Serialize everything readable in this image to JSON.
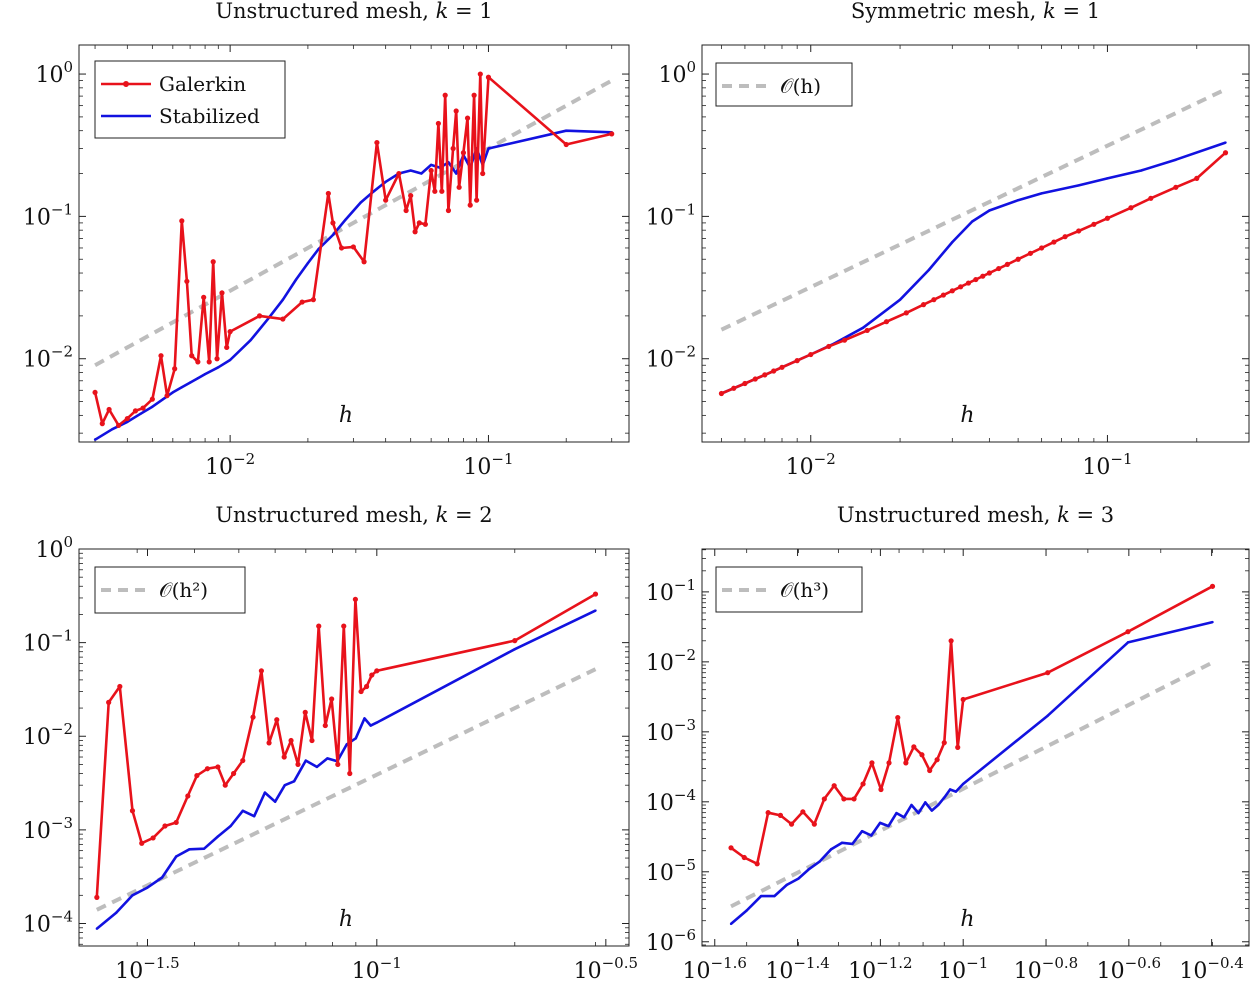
{
  "colors": {
    "galerkin": "#e8121b",
    "stabilized": "#1212e0",
    "reference": "#bdbdbd"
  },
  "chart_data": [
    {
      "type": "line",
      "title": "Unstructured mesh, k = 1",
      "title_parts": {
        "text": "Unstructured mesh, ",
        "var": "k",
        "rest": " = 1"
      },
      "xlabel": "h",
      "xscale": "log",
      "yscale": "log",
      "xlim": [
        0.0026,
        0.35
      ],
      "ylim": [
        0.0026,
        1.6
      ],
      "xticks": [
        {
          "base": "10",
          "exp": "−2",
          "value": 0.01
        },
        {
          "base": "10",
          "exp": "−1",
          "value": 0.1
        }
      ],
      "yticks": [
        {
          "base": "10",
          "exp": "−2",
          "value": 0.01
        },
        {
          "base": "10",
          "exp": "−1",
          "value": 0.1
        },
        {
          "base": "10",
          "exp": "0",
          "value": 1
        }
      ],
      "legend": {
        "placement": "top-left",
        "entries": [
          "Galerkin",
          "Stabilized"
        ]
      },
      "series": [
        {
          "name": "Galerkin",
          "color": "galerkin",
          "markers": true,
          "x": [
            0.003,
            0.0032,
            0.0034,
            0.0037,
            0.004,
            0.0043,
            0.0046,
            0.005,
            0.0054,
            0.0057,
            0.0061,
            0.0065,
            0.0068,
            0.0071,
            0.0075,
            0.0079,
            0.0083,
            0.0086,
            0.0089,
            0.0093,
            0.0097,
            0.01,
            0.013,
            0.016,
            0.019,
            0.021,
            0.024,
            0.025,
            0.027,
            0.03,
            0.033,
            0.037,
            0.04,
            0.045,
            0.048,
            0.05,
            0.052,
            0.054,
            0.057,
            0.06,
            0.062,
            0.064,
            0.066,
            0.068,
            0.07,
            0.073,
            0.075,
            0.077,
            0.08,
            0.083,
            0.085,
            0.088,
            0.09,
            0.093,
            0.095,
            0.1,
            0.2,
            0.3
          ],
          "y": [
            0.0058,
            0.0035,
            0.0044,
            0.0034,
            0.0038,
            0.0043,
            0.0045,
            0.0052,
            0.0105,
            0.0055,
            0.0085,
            0.093,
            0.035,
            0.0105,
            0.0095,
            0.027,
            0.0095,
            0.048,
            0.01,
            0.029,
            0.012,
            0.0155,
            0.02,
            0.019,
            0.025,
            0.026,
            0.145,
            0.09,
            0.06,
            0.061,
            0.048,
            0.33,
            0.13,
            0.2,
            0.11,
            0.14,
            0.078,
            0.09,
            0.088,
            0.21,
            0.15,
            0.45,
            0.15,
            0.71,
            0.11,
            0.3,
            0.55,
            0.16,
            0.28,
            0.49,
            0.12,
            0.71,
            0.13,
            1.0,
            0.2,
            0.95,
            0.32,
            0.38
          ]
        },
        {
          "name": "Stabilized",
          "color": "stabilized",
          "markers": false,
          "x": [
            0.003,
            0.0035,
            0.004,
            0.0045,
            0.005,
            0.0055,
            0.006,
            0.0065,
            0.007,
            0.0075,
            0.008,
            0.009,
            0.01,
            0.012,
            0.014,
            0.016,
            0.018,
            0.02,
            0.022,
            0.025,
            0.028,
            0.032,
            0.036,
            0.04,
            0.045,
            0.05,
            0.055,
            0.06,
            0.065,
            0.07,
            0.075,
            0.08,
            0.085,
            0.09,
            0.095,
            0.1,
            0.2,
            0.3
          ],
          "y": [
            0.0027,
            0.0032,
            0.0036,
            0.0041,
            0.0046,
            0.0052,
            0.0058,
            0.0063,
            0.0068,
            0.0073,
            0.0078,
            0.0087,
            0.0098,
            0.0135,
            0.019,
            0.026,
            0.036,
            0.047,
            0.059,
            0.074,
            0.095,
            0.125,
            0.15,
            0.175,
            0.2,
            0.21,
            0.2,
            0.23,
            0.22,
            0.24,
            0.2,
            0.27,
            0.22,
            0.3,
            0.23,
            0.3,
            0.4,
            0.39
          ]
        },
        {
          "name": "",
          "color": "reference",
          "dashed": true,
          "x": [
            0.003,
            0.3
          ],
          "y": [
            0.009,
            0.9
          ]
        }
      ]
    },
    {
      "type": "line",
      "title": "Symmetric mesh, k = 1",
      "title_parts": {
        "text": "Symmetric mesh, ",
        "var": "k",
        "rest": " = 1"
      },
      "xlabel": "h",
      "xscale": "log",
      "yscale": "log",
      "xlim": [
        0.0043,
        0.3
      ],
      "ylim": [
        0.0026,
        1.6
      ],
      "xticks": [
        {
          "base": "10",
          "exp": "−2",
          "value": 0.01
        },
        {
          "base": "10",
          "exp": "−1",
          "value": 0.1
        }
      ],
      "yticks": [
        {
          "base": "10",
          "exp": "−2",
          "value": 0.01
        },
        {
          "base": "10",
          "exp": "−1",
          "value": 0.1
        },
        {
          "base": "10",
          "exp": "0",
          "value": 1
        }
      ],
      "legend": {
        "placement": "top-left",
        "entries": [
          "𝒪(h)"
        ]
      },
      "series": [
        {
          "name": "Galerkin",
          "color": "galerkin",
          "markers": true,
          "x": [
            0.005,
            0.0055,
            0.006,
            0.0065,
            0.007,
            0.0075,
            0.008,
            0.009,
            0.01,
            0.0115,
            0.013,
            0.0155,
            0.018,
            0.021,
            0.024,
            0.026,
            0.028,
            0.03,
            0.032,
            0.034,
            0.036,
            0.038,
            0.04,
            0.043,
            0.046,
            0.05,
            0.055,
            0.06,
            0.066,
            0.072,
            0.08,
            0.09,
            0.1,
            0.12,
            0.14,
            0.17,
            0.2,
            0.25
          ],
          "y": [
            0.0057,
            0.0062,
            0.0067,
            0.0072,
            0.0077,
            0.0082,
            0.0087,
            0.0097,
            0.0107,
            0.0122,
            0.0135,
            0.0158,
            0.0182,
            0.021,
            0.024,
            0.026,
            0.028,
            0.03,
            0.032,
            0.034,
            0.036,
            0.038,
            0.04,
            0.043,
            0.046,
            0.05,
            0.055,
            0.06,
            0.066,
            0.072,
            0.079,
            0.088,
            0.097,
            0.115,
            0.134,
            0.16,
            0.185,
            0.28
          ]
        },
        {
          "name": "Stabilized",
          "color": "stabilized",
          "markers": false,
          "x": [
            0.005,
            0.006,
            0.007,
            0.008,
            0.01,
            0.012,
            0.015,
            0.02,
            0.025,
            0.03,
            0.035,
            0.04,
            0.05,
            0.06,
            0.08,
            0.1,
            0.13,
            0.17,
            0.25
          ],
          "y": [
            0.0057,
            0.0067,
            0.0077,
            0.0087,
            0.0107,
            0.0128,
            0.0165,
            0.026,
            0.042,
            0.066,
            0.092,
            0.11,
            0.13,
            0.145,
            0.165,
            0.185,
            0.21,
            0.25,
            0.33
          ]
        },
        {
          "name": "𝒪(h)",
          "color": "reference",
          "dashed": true,
          "x": [
            0.005,
            0.25
          ],
          "y": [
            0.016,
            0.78
          ]
        }
      ]
    },
    {
      "type": "line",
      "title": "Unstructured mesh, k = 2",
      "title_parts": {
        "text": "Unstructured mesh, ",
        "var": "k",
        "rest": " = 2"
      },
      "xlabel": "h",
      "xscale": "log",
      "yscale": "log",
      "xlim": [
        0.0224,
        0.355
      ],
      "ylim": [
        5.75e-05,
        1.0
      ],
      "xticks": [
        {
          "base": "10",
          "exp": "−1.5",
          "value": 0.0316
        },
        {
          "base": "10",
          "exp": "−1",
          "value": 0.1
        },
        {
          "base": "10",
          "exp": "−0.5",
          "value": 0.316
        }
      ],
      "yticks": [
        {
          "base": "10",
          "exp": "−4",
          "value": 0.0001
        },
        {
          "base": "10",
          "exp": "−3",
          "value": 0.001
        },
        {
          "base": "10",
          "exp": "−2",
          "value": 0.01
        },
        {
          "base": "10",
          "exp": "−1",
          "value": 0.1
        },
        {
          "base": "10",
          "exp": "0",
          "value": 1
        }
      ],
      "legend": {
        "placement": "top-left",
        "entries": [
          "𝒪(h²)"
        ]
      },
      "series": [
        {
          "name": "Galerkin",
          "color": "galerkin",
          "markers": true,
          "x": [
            0.0245,
            0.026,
            0.0275,
            0.0293,
            0.0307,
            0.0325,
            0.0345,
            0.0365,
            0.0387,
            0.0405,
            0.0427,
            0.045,
            0.0467,
            0.0487,
            0.051,
            0.0537,
            0.056,
            0.0582,
            0.0605,
            0.0628,
            0.065,
            0.0673,
            0.0698,
            0.0722,
            0.0747,
            0.0772,
            0.0797,
            0.0822,
            0.0847,
            0.0873,
            0.0898,
            0.0924,
            0.095,
            0.0975,
            0.1,
            0.2,
            0.3
          ],
          "y": [
            0.00019,
            0.023,
            0.034,
            0.0016,
            0.00072,
            0.00082,
            0.0011,
            0.0012,
            0.0023,
            0.0038,
            0.0045,
            0.0047,
            0.003,
            0.004,
            0.0055,
            0.016,
            0.05,
            0.0085,
            0.015,
            0.006,
            0.009,
            0.005,
            0.018,
            0.009,
            0.15,
            0.013,
            0.025,
            0.005,
            0.15,
            0.004,
            0.29,
            0.03,
            0.034,
            0.045,
            0.05,
            0.105,
            0.33
          ]
        },
        {
          "name": "Stabilized",
          "color": "stabilized",
          "markers": false,
          "x": [
            0.0245,
            0.027,
            0.0293,
            0.0315,
            0.034,
            0.0365,
            0.039,
            0.042,
            0.045,
            0.048,
            0.051,
            0.054,
            0.057,
            0.06,
            0.063,
            0.066,
            0.07,
            0.074,
            0.078,
            0.082,
            0.086,
            0.09,
            0.094,
            0.097,
            0.1,
            0.2,
            0.3
          ],
          "y": [
            8.8e-05,
            0.00013,
            0.0002,
            0.00024,
            0.00031,
            0.00052,
            0.00062,
            0.00063,
            0.00085,
            0.0011,
            0.0016,
            0.0014,
            0.0025,
            0.002,
            0.003,
            0.0033,
            0.0055,
            0.0047,
            0.0058,
            0.0054,
            0.0082,
            0.0095,
            0.0155,
            0.013,
            0.014,
            0.085,
            0.22
          ]
        },
        {
          "name": "𝒪(h²)",
          "color": "reference",
          "dashed": true,
          "x": [
            0.0245,
            0.3
          ],
          "y": [
            0.00014,
            0.052
          ]
        }
      ]
    },
    {
      "type": "line",
      "title": "Unstructured mesh, k = 3",
      "title_parts": {
        "text": "Unstructured mesh, ",
        "var": "k",
        "rest": " = 3"
      },
      "xlabel": "h",
      "xscale": "log",
      "yscale": "log",
      "xlim": [
        0.0234,
        0.49
      ],
      "ylim": [
        8.7e-07,
        0.41
      ],
      "xticks": [
        {
          "base": "10",
          "exp": "−1.6",
          "value": 0.02512
        },
        {
          "base": "10",
          "exp": "−1.4",
          "value": 0.03981
        },
        {
          "base": "10",
          "exp": "−1.2",
          "value": 0.0631
        },
        {
          "base": "10",
          "exp": "−1",
          "value": 0.1
        },
        {
          "base": "10",
          "exp": "−0.8",
          "value": 0.1585
        },
        {
          "base": "10",
          "exp": "−0.6",
          "value": 0.2512
        },
        {
          "base": "10",
          "exp": "−0.4",
          "value": 0.3981
        }
      ],
      "yticks": [
        {
          "base": "10",
          "exp": "−6",
          "value": 1e-06
        },
        {
          "base": "10",
          "exp": "−5",
          "value": 1e-05
        },
        {
          "base": "10",
          "exp": "−4",
          "value": 0.0001
        },
        {
          "base": "10",
          "exp": "−3",
          "value": 0.001
        },
        {
          "base": "10",
          "exp": "−2",
          "value": 0.01
        },
        {
          "base": "10",
          "exp": "−1",
          "value": 0.1
        }
      ],
      "legend": {
        "placement": "top-left",
        "entries": [
          "𝒪(h³)"
        ]
      },
      "series": [
        {
          "name": "Galerkin",
          "color": "galerkin",
          "markers": true,
          "x": [
            0.0275,
            0.0296,
            0.0318,
            0.0338,
            0.0362,
            0.0385,
            0.041,
            0.0437,
            0.0462,
            0.0488,
            0.0515,
            0.0545,
            0.0573,
            0.0602,
            0.0633,
            0.0662,
            0.0695,
            0.0727,
            0.076,
            0.0795,
            0.083,
            0.0865,
            0.09,
            0.0935,
            0.097,
            0.1,
            0.16,
            0.25,
            0.4
          ],
          "y": [
            2.2e-05,
            1.6e-05,
            1.3e-05,
            7e-05,
            6.4e-05,
            4.8e-05,
            7.2e-05,
            4.8e-05,
            0.00011,
            0.00017,
            0.00011,
            0.00011,
            0.00018,
            0.00036,
            0.00015,
            0.00036,
            0.0016,
            0.00036,
            0.00061,
            0.00047,
            0.00028,
            0.0004,
            0.0007,
            0.02,
            0.0006,
            0.0029,
            0.007,
            0.027,
            0.12
          ]
        },
        {
          "name": "Stabilized",
          "color": "stabilized",
          "markers": false,
          "x": [
            0.0275,
            0.03,
            0.0325,
            0.035,
            0.0375,
            0.04,
            0.0425,
            0.045,
            0.048,
            0.051,
            0.054,
            0.057,
            0.06,
            0.063,
            0.066,
            0.069,
            0.072,
            0.075,
            0.078,
            0.081,
            0.084,
            0.087,
            0.09,
            0.093,
            0.096,
            0.1,
            0.16,
            0.25,
            0.4
          ],
          "y": [
            1.8e-06,
            2.8e-06,
            4.5e-06,
            4.5e-06,
            6.5e-06,
            8e-06,
            1.1e-05,
            1.4e-05,
            2.1e-05,
            2.6e-05,
            2.5e-05,
            3.8e-05,
            3.3e-05,
            5e-05,
            4.5e-05,
            6.9e-05,
            6e-05,
            9e-05,
            6.9e-05,
            9.8e-05,
            7.5e-05,
            9e-05,
            0.000115,
            0.00015,
            0.00014,
            0.00018,
            0.0017,
            0.019,
            0.037
          ]
        },
        {
          "name": "𝒪(h³)",
          "color": "reference",
          "dashed": true,
          "x": [
            0.0275,
            0.4
          ],
          "y": [
            3.2e-06,
            0.0098
          ]
        }
      ]
    }
  ]
}
